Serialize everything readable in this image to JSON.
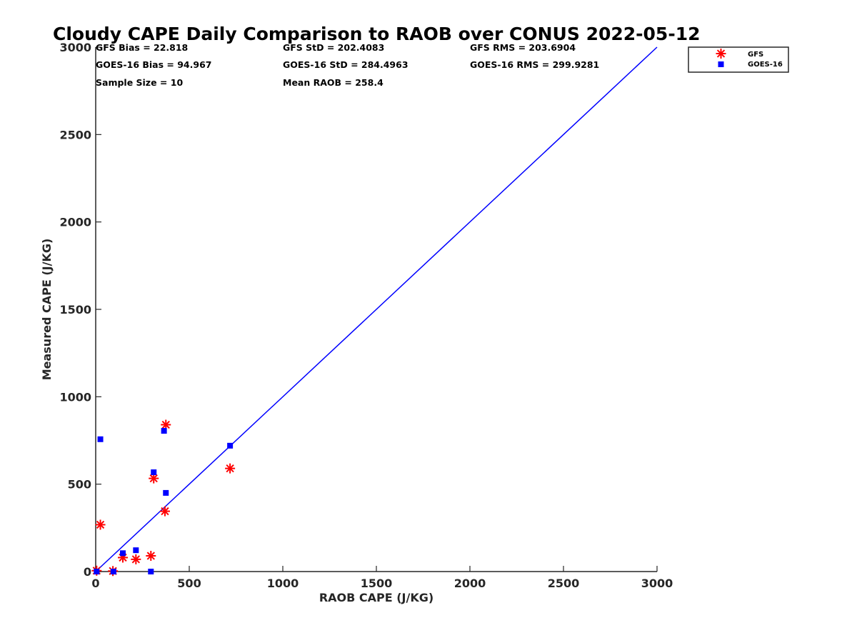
{
  "colors": {
    "gfs": "#ff0000",
    "goes": "#0000ff",
    "line": "#0000ff",
    "axis": "#262626"
  },
  "stats": {
    "gfs_bias": "GFS Bias = 22.818",
    "goes_bias": "GOES-16 Bias = 94.967",
    "sample_size": "Sample Size = 10",
    "gfs_std": "GFS StD = 202.4083",
    "goes_std": "GOES-16 StD = 284.4963",
    "mean_raob": "Mean RAOB = 258.4",
    "gfs_rms": "GFS RMS = 203.6904",
    "goes_rms": "GOES-16 RMS = 299.9281"
  },
  "chart_data": {
    "type": "scatter",
    "title": "Cloudy CAPE Daily Comparison to RAOB over CONUS 2022-05-12",
    "xlabel": "RAOB CAPE (J/KG)",
    "ylabel": "Measured CAPE (J/KG)",
    "xlim": [
      0,
      3000
    ],
    "ylim": [
      0,
      3000
    ],
    "xticks": [
      0,
      500,
      1000,
      1500,
      2000,
      2500,
      3000
    ],
    "yticks": [
      0,
      500,
      1000,
      1500,
      2000,
      2500,
      3000
    ],
    "grid": false,
    "legend_position": "top-right",
    "reference_line": {
      "x": [
        0,
        3000
      ],
      "y": [
        0,
        3000
      ]
    },
    "series": [
      {
        "name": "GFS",
        "marker": "asterisk",
        "color": "#ff0000",
        "points": [
          {
            "x": 5,
            "y": 5
          },
          {
            "x": 25,
            "y": 268
          },
          {
            "x": 92,
            "y": 3
          },
          {
            "x": 145,
            "y": 80
          },
          {
            "x": 215,
            "y": 70
          },
          {
            "x": 295,
            "y": 90
          },
          {
            "x": 310,
            "y": 533
          },
          {
            "x": 370,
            "y": 345
          },
          {
            "x": 375,
            "y": 840
          },
          {
            "x": 718,
            "y": 590
          }
        ]
      },
      {
        "name": "GOES-16",
        "marker": "square",
        "color": "#0000ff",
        "points": [
          {
            "x": 5,
            "y": 0
          },
          {
            "x": 25,
            "y": 757
          },
          {
            "x": 95,
            "y": 0
          },
          {
            "x": 145,
            "y": 105
          },
          {
            "x": 215,
            "y": 122
          },
          {
            "x": 295,
            "y": 0
          },
          {
            "x": 310,
            "y": 568
          },
          {
            "x": 365,
            "y": 805
          },
          {
            "x": 375,
            "y": 450
          },
          {
            "x": 718,
            "y": 720
          }
        ]
      }
    ]
  }
}
